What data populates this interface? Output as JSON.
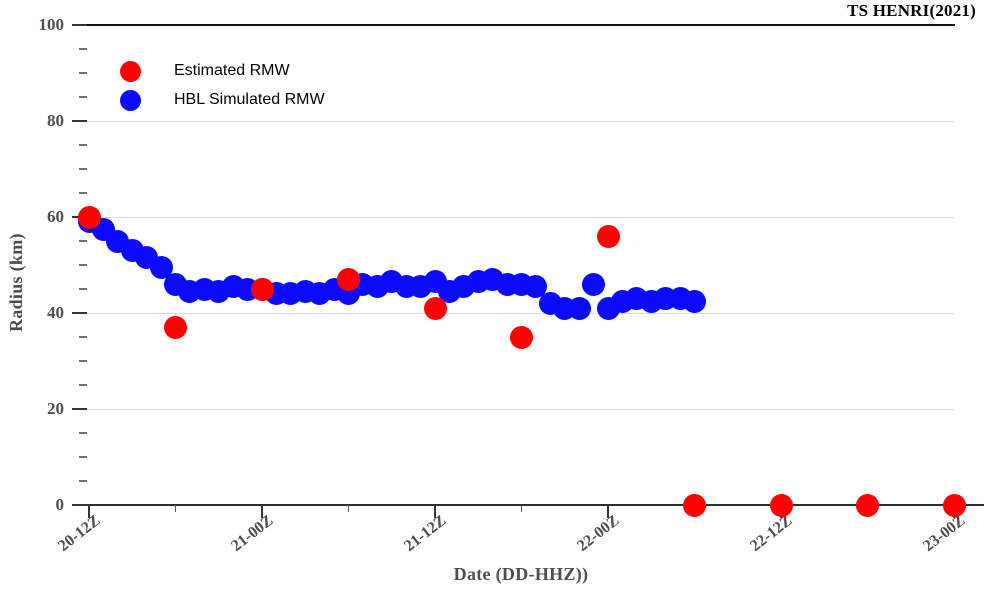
{
  "chart_data": {
    "type": "scatter",
    "title": "TS HENRI(2021)",
    "xlabel": "Date (DD-HHZ))",
    "ylabel": "Radius (km)",
    "xlim_hours_after_20_12Z": [
      0,
      60
    ],
    "ylim": [
      0,
      100
    ],
    "grid": "horizontal-major-light-gray",
    "legend_position": "upper-left-inside",
    "x_axis": {
      "label": "Date (DD-HHZ))",
      "major_ticks": [
        {
          "hour": 0,
          "label": "20-12Z"
        },
        {
          "hour": 12,
          "label": "21-00Z"
        },
        {
          "hour": 24,
          "label": "21-12Z"
        },
        {
          "hour": 36,
          "label": "22-00Z"
        },
        {
          "hour": 48,
          "label": "22-12Z"
        },
        {
          "hour": 60,
          "label": "23-00Z"
        }
      ],
      "minor_tick_hours": [
        6,
        18,
        30,
        42,
        54
      ]
    },
    "y_axis": {
      "label": "Radius (km)",
      "major_ticks": [
        0,
        20,
        40,
        60,
        80,
        100
      ],
      "minor_step": 5
    },
    "legend": [
      {
        "label": "Estimated RMW",
        "color": "#ff0000"
      },
      {
        "label": "HBL Simulated RMW",
        "color": "#0a0aff"
      }
    ],
    "series": [
      {
        "name": "HBL Simulated RMW",
        "color": "#0a0aff",
        "marker": "circle",
        "points": [
          [
            0,
            59
          ],
          [
            1,
            57.5
          ],
          [
            2,
            55
          ],
          [
            3,
            53
          ],
          [
            4,
            51.5
          ],
          [
            5,
            49.5
          ],
          [
            6,
            46
          ],
          [
            7,
            44.5
          ],
          [
            8,
            45
          ],
          [
            9,
            44.5
          ],
          [
            10,
            45.5
          ],
          [
            11,
            45
          ],
          [
            12,
            45
          ],
          [
            13,
            44
          ],
          [
            14,
            44
          ],
          [
            15,
            44.5
          ],
          [
            16,
            44
          ],
          [
            17,
            45
          ],
          [
            18,
            44
          ],
          [
            19,
            46
          ],
          [
            20,
            45.5
          ],
          [
            21,
            46.5
          ],
          [
            22,
            45.5
          ],
          [
            23,
            45.5
          ],
          [
            24,
            46.5
          ],
          [
            25,
            44.5
          ],
          [
            26,
            45.5
          ],
          [
            27,
            46.5
          ],
          [
            28,
            47
          ],
          [
            29,
            46
          ],
          [
            30,
            46
          ],
          [
            31,
            45.5
          ],
          [
            32,
            42
          ],
          [
            33,
            41
          ],
          [
            34,
            41
          ],
          [
            35,
            46
          ],
          [
            36,
            41
          ],
          [
            37,
            42.5
          ],
          [
            38,
            43
          ],
          [
            39,
            42.5
          ],
          [
            40,
            43
          ],
          [
            41,
            43
          ],
          [
            42,
            42.5
          ]
        ]
      },
      {
        "name": "Estimated RMW",
        "color": "#ff0000",
        "marker": "circle",
        "points": [
          [
            0,
            60
          ],
          [
            6,
            37
          ],
          [
            12,
            45
          ],
          [
            18,
            47
          ],
          [
            24,
            41
          ],
          [
            30,
            35
          ],
          [
            36,
            56
          ],
          [
            42,
            0
          ],
          [
            48,
            0
          ],
          [
            54,
            0
          ],
          [
            60,
            0
          ]
        ]
      }
    ],
    "colors": {
      "estimated_rmw": "#ff0000",
      "hbl_simulated_rmw": "#0a0aff",
      "gridline": "#dcdcdc",
      "axis": "#2f2f2f",
      "tick_label": "#4d4d4d",
      "title": "#000000"
    }
  }
}
